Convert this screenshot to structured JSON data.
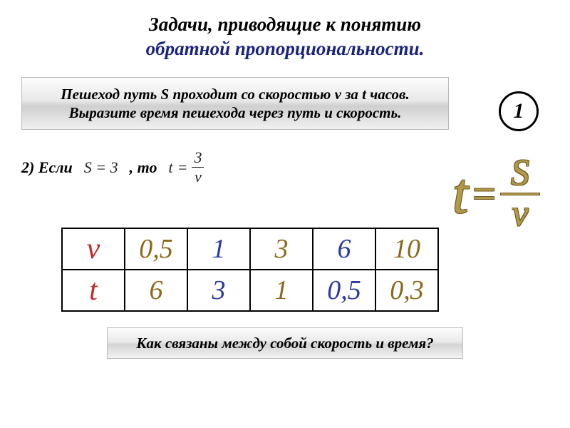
{
  "title": {
    "line1": "Задачи, приводящие к понятию",
    "line2": "обратной пропорциональности."
  },
  "badge": "1",
  "problem": "Пешеход путь S проходит со скоростью v за t часов. Выразите время пешехода через путь и скорость.",
  "condition": {
    "label": "2) Если",
    "lhs": "S = 3",
    "connector": ", то",
    "rhs_lhs": "t",
    "rhs_num": "3",
    "rhs_den": "v"
  },
  "formula": {
    "left": "t",
    "num": "S",
    "den": "v"
  },
  "table": {
    "rows": [
      {
        "header": "v",
        "cells": [
          "0,5",
          "1",
          "3",
          "6",
          "10"
        ]
      },
      {
        "header": "t",
        "cells": [
          "6",
          "3",
          "1",
          "0,5",
          "0,3"
        ]
      }
    ],
    "header_color": "#c02a2a",
    "col_colors": [
      "#8a6a1a",
      "#2a3aa0",
      "#8a6a1a",
      "#2a3aa0",
      "#8a6a1a"
    ],
    "border_color": "#000000",
    "cell_fontsize": 38,
    "header_fontsize": 42
  },
  "question": "Как связаны между собой скорость и время?",
  "colors": {
    "title_accent": "#1a237e",
    "formula_fill": "#b39a4a",
    "formula_outline": "#6b5a1f",
    "panel_gradient_top": "#fdfdfd",
    "panel_gradient_bottom": "#f1f1f1"
  },
  "fonts": {
    "title_size": 27,
    "problem_size": 21,
    "condition_size": 22,
    "formula_t_size": 80,
    "formula_sv_size": 52,
    "question_size": 21
  }
}
